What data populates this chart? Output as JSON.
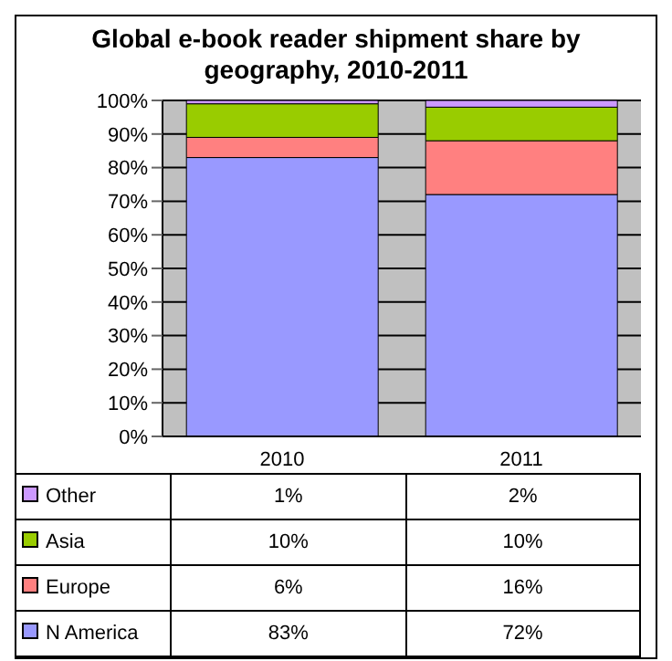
{
  "chart_data": {
    "type": "bar",
    "title": "Global e-book reader shipment share by geography, 2010-2011",
    "categories": [
      "2010",
      "2011"
    ],
    "stacked": true,
    "ylim": [
      0,
      100
    ],
    "yticks": [
      {
        "value": 0,
        "label": "0%"
      },
      {
        "value": 10,
        "label": "10%"
      },
      {
        "value": 20,
        "label": "20%"
      },
      {
        "value": 30,
        "label": "30%"
      },
      {
        "value": 40,
        "label": "40%"
      },
      {
        "value": 50,
        "label": "50%"
      },
      {
        "value": 60,
        "label": "60%"
      },
      {
        "value": 70,
        "label": "70%"
      },
      {
        "value": 80,
        "label": "80%"
      },
      {
        "value": 90,
        "label": "90%"
      },
      {
        "value": 100,
        "label": "100%"
      }
    ],
    "grid": "y",
    "legend": "bottom",
    "series": [
      {
        "name": "N America",
        "color": "#9999ff",
        "values": [
          83,
          72
        ],
        "value_labels": [
          "83%",
          "72%"
        ]
      },
      {
        "name": "Europe",
        "color": "#ff8080",
        "values": [
          6,
          16
        ],
        "value_labels": [
          "6%",
          "16%"
        ]
      },
      {
        "name": "Asia",
        "color": "#99cc00",
        "values": [
          10,
          10
        ],
        "value_labels": [
          "10%",
          "10%"
        ]
      },
      {
        "name": "Other",
        "color": "#cc99ff",
        "values": [
          1,
          2
        ],
        "value_labels": [
          "1%",
          "2%"
        ]
      }
    ]
  }
}
